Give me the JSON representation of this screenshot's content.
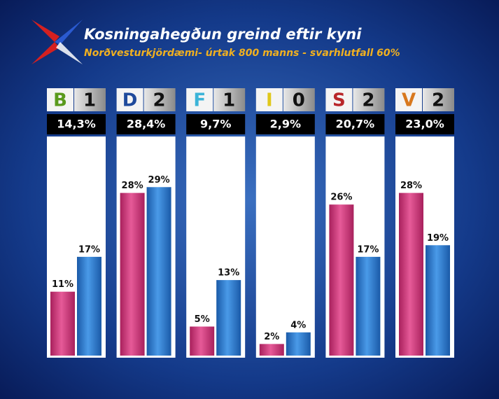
{
  "chart_data": {
    "type": "bar",
    "title": "Kosningahegðun greind eftir kyni",
    "subtitle": "Norðvesturkjördæmi- úrtak 800 manns - svarhlutfall 60%",
    "categories": [
      "B",
      "D",
      "F",
      "I",
      "S",
      "V"
    ],
    "category_colors": [
      "#5a9a1e",
      "#1f4a9c",
      "#3cb4d8",
      "#e0c81a",
      "#b8262a",
      "#d8781e"
    ],
    "seats": [
      1,
      2,
      1,
      0,
      2,
      2
    ],
    "totals": [
      14.3,
      28.4,
      9.7,
      2.9,
      20.7,
      23.0
    ],
    "totals_labels": [
      "14,3%",
      "28,4%",
      "9,7%",
      "2,9%",
      "20,7%",
      "23,0%"
    ],
    "series": [
      {
        "color": "#d43c80",
        "values": [
          11,
          28,
          5,
          2,
          26,
          28
        ],
        "value_labels": [
          "11%",
          "28%",
          "5%",
          "2%",
          "26%",
          "28%"
        ]
      },
      {
        "color": "#2f7fd0",
        "values": [
          17,
          29,
          13,
          4,
          17,
          19
        ],
        "value_labels": [
          "17%",
          "29%",
          "13%",
          "4%",
          "17%",
          "19%"
        ]
      }
    ]
  }
}
